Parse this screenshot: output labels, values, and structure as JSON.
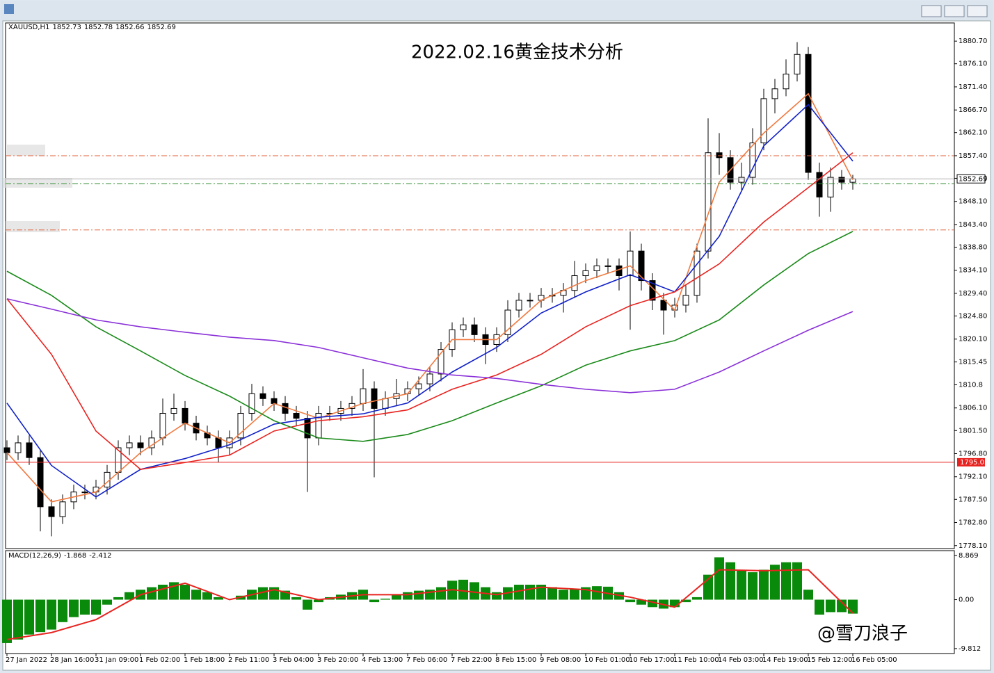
{
  "window": {
    "watermark": "@雪刀浪子"
  },
  "chart_data": [
    {
      "type": "candlestick",
      "title": "2022.02.16黄金技术分析",
      "title_color": "#e8231f",
      "symbol": "XAUUSD,H1",
      "ohlc_header": [
        1852.73,
        1852.78,
        1852.66,
        1852.69
      ],
      "xlim": [
        -0.5,
        340.5
      ],
      "ylim": [
        1777.5,
        1884.4
      ],
      "yticks": [
        {
          "value": 1880.7,
          "label": "1880.70"
        },
        {
          "value": 1876.1,
          "label": "1876.10"
        },
        {
          "value": 1871.4,
          "label": "1871.40"
        },
        {
          "value": 1866.7,
          "label": "1866.70"
        },
        {
          "value": 1862.1,
          "label": "1862.10"
        },
        {
          "value": 1857.4,
          "label": "1857.40"
        },
        {
          "value": 1852.8,
          "label": "1852.80"
        },
        {
          "value": 1848.1,
          "label": "1848.10"
        },
        {
          "value": 1843.4,
          "label": "1843.40"
        },
        {
          "value": 1838.8,
          "label": "1838.80"
        },
        {
          "value": 1834.1,
          "label": "1834.10"
        },
        {
          "value": 1829.4,
          "label": "1829.40"
        },
        {
          "value": 1824.8,
          "label": "1824.80"
        },
        {
          "value": 1820.1,
          "label": "1820.10"
        },
        1815.45,
        1810.8,
        {
          "value": 1806.1,
          "label": "1806.10"
        },
        {
          "value": 1801.5,
          "label": "1801.50"
        },
        {
          "value": 1796.8,
          "label": "1796.80"
        },
        {
          "value": 1792.1,
          "label": "1792.10"
        },
        {
          "value": 1787.5,
          "label": "1787.50"
        },
        {
          "value": 1782.8,
          "label": "1782.80"
        },
        {
          "value": 1778.1,
          "label": "1778.10"
        }
      ],
      "up_color": "#ffffff",
      "down_color": "#000000",
      "x": [
        0,
        4,
        8,
        12,
        16,
        20,
        24,
        28,
        32,
        36,
        40,
        44,
        48,
        52,
        56,
        60,
        64,
        68,
        72,
        76,
        80,
        84,
        88,
        92,
        96,
        100,
        104,
        108,
        112,
        116,
        120,
        124,
        128,
        132,
        136,
        140,
        144,
        148,
        152,
        156,
        160,
        164,
        168,
        172,
        176,
        180,
        184,
        188,
        192,
        196,
        200,
        204,
        208,
        212,
        216,
        220,
        224,
        228,
        232,
        236,
        240,
        244,
        248,
        252,
        256,
        260,
        264,
        268,
        272,
        276,
        280,
        284,
        288,
        292,
        296,
        300,
        304
      ],
      "open": [
        1798,
        1797,
        1799,
        1796,
        1786,
        1784,
        1787,
        1789,
        1789,
        1790,
        1793,
        1798,
        1799,
        1798,
        1800,
        1805,
        1806,
        1803,
        1801,
        1800,
        1798,
        1800,
        1805,
        1809,
        1808,
        1807,
        1805,
        1804,
        1800,
        1805,
        1805,
        1806,
        1807,
        1810,
        1806,
        1808,
        1809,
        1810,
        1811,
        1813,
        1818,
        1822,
        1823,
        1821,
        1819,
        1821,
        1826,
        1828,
        1828,
        1829,
        1829,
        1830,
        1833,
        1834,
        1835,
        1835,
        1833,
        1838,
        1832,
        1828,
        1826,
        1827,
        1829,
        1838,
        1858,
        1857,
        1852,
        1853,
        1860,
        1869,
        1871,
        1874,
        1878,
        1854,
        1849,
        1853,
        1852
      ],
      "high": [
        1799.5,
        1800.5,
        1800.5,
        1797.5,
        1787.5,
        1788.5,
        1790.5,
        1790.5,
        1791.5,
        1794.5,
        1799.5,
        1800.5,
        1800.5,
        1801.5,
        1808,
        1809,
        1807.5,
        1804.5,
        1802.5,
        1801.5,
        1801.5,
        1806.5,
        1811,
        1810.5,
        1809.5,
        1808.5,
        1806.5,
        1805.5,
        1806.5,
        1806.5,
        1807.5,
        1808.5,
        1814,
        1811.5,
        1809.5,
        1812,
        1811.5,
        1812.5,
        1814.5,
        1819.5,
        1823.5,
        1824.5,
        1824.5,
        1822.5,
        1822.5,
        1828,
        1829.5,
        1829.5,
        1830.5,
        1830.5,
        1831.5,
        1836,
        1835.5,
        1836.5,
        1836.5,
        1836.5,
        1842,
        1839.5,
        1833.5,
        1829.5,
        1828.5,
        1831,
        1839.5,
        1865,
        1862,
        1858.5,
        1856,
        1863,
        1871,
        1873,
        1877,
        1880.5,
        1879.5,
        1856,
        1855,
        1854.5,
        1853.5
      ],
      "low": [
        1795.5,
        1795.5,
        1794.5,
        1781,
        1780,
        1782.5,
        1785.5,
        1787.5,
        1787.5,
        1788.5,
        1791.5,
        1796.5,
        1796.5,
        1796.5,
        1798.5,
        1803.5,
        1801.5,
        1799.5,
        1798.5,
        1795,
        1796.5,
        1798.5,
        1803.5,
        1806.5,
        1805.5,
        1803.5,
        1802.5,
        1789,
        1798.5,
        1803.5,
        1803.5,
        1804.5,
        1805.5,
        1792,
        1804.5,
        1806.5,
        1807.5,
        1808.5,
        1809.5,
        1811.5,
        1816.5,
        1820.5,
        1819.5,
        1815,
        1817.5,
        1819.5,
        1824.5,
        1826.5,
        1826.5,
        1827.5,
        1825.5,
        1828.5,
        1831.5,
        1832.5,
        1833.5,
        1830,
        1822,
        1830,
        1826,
        1821,
        1824.5,
        1825.5,
        1827.5,
        1836.5,
        1853.5,
        1850.5,
        1850.5,
        1851.5,
        1858.5,
        1866,
        1869.5,
        1872.5,
        1852.5,
        1845,
        1846,
        1850.5,
        1850.5
      ],
      "close": [
        1797,
        1799,
        1796,
        1786,
        1784,
        1787,
        1789,
        1789,
        1790,
        1793,
        1798,
        1799,
        1798,
        1800,
        1805,
        1806,
        1803,
        1801,
        1800,
        1798,
        1800,
        1805,
        1809,
        1808,
        1807,
        1805,
        1804,
        1800,
        1805,
        1805,
        1806,
        1807,
        1810,
        1806,
        1808,
        1809,
        1810,
        1811,
        1813,
        1818,
        1822,
        1823,
        1821,
        1819,
        1821,
        1826,
        1828,
        1828,
        1829,
        1829,
        1830,
        1833,
        1834,
        1835,
        1835,
        1833,
        1838,
        1832,
        1828,
        1826,
        1827,
        1829,
        1838,
        1858,
        1857,
        1852,
        1853,
        1860,
        1869,
        1871,
        1874,
        1878,
        1854,
        1849,
        1853,
        1852,
        1852.69
      ],
      "series": [
        {
          "color": "#f07a40",
          "x": [
            0,
            16,
            32,
            48,
            64,
            80,
            96,
            112,
            128,
            144,
            160,
            176,
            192,
            208,
            224,
            240,
            256,
            272,
            288,
            304
          ],
          "values": [
            1797,
            1787,
            1789,
            1797,
            1803,
            1799,
            1807,
            1804,
            1807,
            1809,
            1820,
            1820,
            1828,
            1832,
            1835,
            1826,
            1852,
            1862,
            1870,
            1852.5
          ]
        },
        {
          "color": "#1020c8",
          "x": [
            0,
            16,
            32,
            48,
            64,
            80,
            96,
            112,
            128,
            144,
            160,
            176,
            192,
            208,
            224,
            240,
            256,
            272,
            288,
            304
          ],
          "values": [
            1807.1,
            1794.4,
            1788,
            1793.6,
            1795.8,
            1798.6,
            1802.8,
            1804.2,
            1804.9,
            1807.1,
            1813.4,
            1818.4,
            1825.4,
            1829.7,
            1833.2,
            1829.7,
            1841,
            1859.4,
            1867.8,
            1856.3
          ]
        },
        {
          "color": "#e8231f",
          "x": [
            0,
            16,
            32,
            48,
            64,
            80,
            96,
            112,
            128,
            144,
            160,
            176,
            192,
            208,
            224,
            240,
            256,
            272,
            288,
            304
          ],
          "values": [
            1828.3,
            1817,
            1801.4,
            1793.6,
            1795,
            1796.5,
            1801.4,
            1803.5,
            1804.3,
            1805.7,
            1809.9,
            1812.8,
            1817,
            1822.6,
            1826.9,
            1829.7,
            1835.4,
            1843.9,
            1850.9,
            1858
          ]
        },
        {
          "color": "#1a8a1a",
          "x": [
            0,
            16,
            32,
            48,
            64,
            80,
            96,
            112,
            128,
            144,
            160,
            176,
            192,
            208,
            224,
            240,
            256,
            272,
            288,
            304
          ],
          "values": [
            1833.9,
            1829,
            1822.6,
            1817.7,
            1812.7,
            1808.5,
            1803.5,
            1800,
            1799.3,
            1800.7,
            1803.5,
            1807.1,
            1810.6,
            1814.8,
            1817.7,
            1819.8,
            1824,
            1831.1,
            1837.5,
            1842
          ]
        },
        {
          "color": "#8a30d8",
          "x": [
            0,
            16,
            32,
            48,
            64,
            80,
            96,
            112,
            128,
            144,
            160,
            176,
            192,
            208,
            224,
            240,
            256,
            272,
            288,
            304
          ],
          "values": [
            1828.3,
            1826.2,
            1824,
            1822.6,
            1821.5,
            1820.5,
            1819.8,
            1818.4,
            1816.3,
            1814.2,
            1812.8,
            1812.1,
            1810.9,
            1809.9,
            1809.2,
            1809.9,
            1813.4,
            1817.7,
            1821.9,
            1825.7
          ]
        }
      ],
      "levels": [
        {
          "value": 1857.4,
          "color": "#e0603a"
        },
        {
          "value": 1851.7,
          "color": "#2a8a2a"
        },
        {
          "value": 1842.3,
          "color": "#e0603a"
        }
      ],
      "support": {
        "value": 1795.05,
        "color": "#e8231f"
      },
      "last_price": 1852.69
    },
    {
      "type": "macd",
      "title": "MACD(12,26,9)",
      "indicator_values": [
        -1.868,
        -2.412
      ],
      "xlim": [
        -0.5,
        340.5
      ],
      "ylim": [
        -10.8,
        9.83
      ],
      "yticks": [
        8.869,
        {
          "value": 0,
          "label": "0.00"
        },
        -9.812
      ],
      "xticks": [
        {
          "value": 0,
          "label": "27 Jan 2022"
        },
        {
          "value": 16,
          "label": "28 Jan 16:00"
        },
        {
          "value": 32,
          "label": "31 Jan 09:00"
        },
        {
          "value": 48,
          "label": "1 Feb 02:00"
        },
        {
          "value": 64,
          "label": "1 Feb 18:00"
        },
        {
          "value": 80,
          "label": "2 Feb 11:00"
        },
        {
          "value": 96,
          "label": "3 Feb 04:00"
        },
        {
          "value": 112,
          "label": "3 Feb 20:00"
        },
        {
          "value": 128,
          "label": "4 Feb 13:00"
        },
        {
          "value": 144,
          "label": "7 Feb 06:00"
        },
        {
          "value": 160,
          "label": "7 Feb 22:00"
        },
        {
          "value": 176,
          "label": "8 Feb 15:00"
        },
        {
          "value": 192,
          "label": "9 Feb 08:00"
        },
        {
          "value": 208,
          "label": "10 Feb 01:00"
        },
        {
          "value": 224,
          "label": "10 Feb 17:00"
        },
        {
          "value": 240,
          "label": "11 Feb 10:00"
        },
        {
          "value": 256,
          "label": "14 Feb 03:00"
        },
        {
          "value": 272,
          "label": "14 Feb 19:00"
        },
        {
          "value": 288,
          "label": "15 Feb 12:00"
        },
        {
          "value": 304,
          "label": "16 Feb 05:00"
        }
      ],
      "histogram": {
        "color": "#0a8a0a",
        "x": [
          0,
          4,
          8,
          12,
          16,
          20,
          24,
          28,
          32,
          36,
          40,
          44,
          48,
          52,
          56,
          60,
          64,
          68,
          72,
          76,
          80,
          84,
          88,
          92,
          96,
          100,
          104,
          108,
          112,
          116,
          120,
          124,
          128,
          132,
          136,
          140,
          144,
          148,
          152,
          156,
          160,
          164,
          168,
          172,
          176,
          180,
          184,
          188,
          192,
          196,
          200,
          204,
          208,
          212,
          216,
          220,
          224,
          228,
          232,
          236,
          240,
          244,
          248,
          252,
          256,
          260,
          264,
          268,
          272,
          276,
          280,
          284,
          288,
          292,
          296,
          300,
          304
        ],
        "values": [
          -8.7,
          -8,
          -7,
          -6.5,
          -6,
          -4.5,
          -3.5,
          -3,
          -3,
          -1,
          0.5,
          1.5,
          2,
          2.5,
          3,
          3.5,
          3,
          2,
          1.5,
          0.5,
          0,
          0.8,
          2,
          2.5,
          2.5,
          1.8,
          0.5,
          -2,
          -0.5,
          0.5,
          1,
          1.5,
          2,
          -0.5,
          0.2,
          1,
          1.5,
          1.8,
          2,
          2.5,
          3.8,
          4,
          3.5,
          2.5,
          1.5,
          2.5,
          3,
          3,
          3,
          2.5,
          2,
          2.2,
          2.5,
          2.7,
          2.6,
          1.5,
          -0.5,
          -1,
          -1.5,
          -1.8,
          -1.5,
          -0.5,
          0.5,
          5,
          8.5,
          7.5,
          6,
          5.5,
          6,
          7,
          7.5,
          7.5,
          2,
          -3,
          -2.5,
          -2.5,
          -2.8
        ]
      },
      "signal": {
        "color": "#e8231f",
        "x": [
          0,
          16,
          32,
          48,
          64,
          80,
          96,
          112,
          128,
          144,
          160,
          176,
          192,
          208,
          224,
          240,
          256,
          272,
          288,
          304
        ],
        "values": [
          -8,
          -6.6,
          -4,
          1,
          3.3,
          0,
          2,
          0,
          1,
          1,
          2,
          1,
          2.5,
          2,
          0.5,
          -1.5,
          6,
          5.8,
          6,
          -2.7
        ]
      }
    }
  ]
}
